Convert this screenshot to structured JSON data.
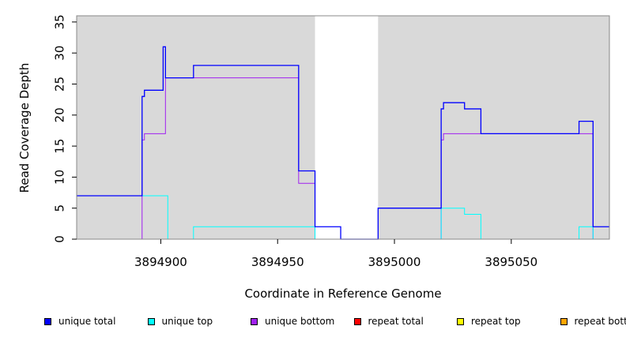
{
  "chart_data": {
    "type": "line",
    "title": "",
    "xlabel": "Coordinate in Reference Genome",
    "ylabel": "Read Coverage Depth",
    "xlim": [
      3894864,
      3895092
    ],
    "ylim": [
      0,
      36
    ],
    "x_ticks": [
      3894900,
      3894950,
      3895000,
      3895050
    ],
    "x_tick_labels": [
      "3894900",
      "3894950",
      "3895000",
      "3895050"
    ],
    "y_ticks": [
      0,
      5,
      10,
      15,
      20,
      25,
      30,
      35
    ],
    "y_tick_labels": [
      "0",
      "5",
      "10",
      "15",
      "20",
      "25",
      "30",
      "35"
    ],
    "shaded_regions": [
      [
        3894864,
        3894966
      ],
      [
        3894993,
        3895092
      ]
    ],
    "shade_color": "#d9d9d9",
    "legend_position": "bottom",
    "series": [
      {
        "name": "unique total",
        "color": "#0000ff",
        "step_x": [
          3894864,
          3894892,
          3894893,
          3894894,
          3894901,
          3894902,
          3894903,
          3894914,
          3894959,
          3894966,
          3894977,
          3894993,
          3895020,
          3895021,
          3895030,
          3895037,
          3895079,
          3895085,
          3895092
        ],
        "step_y": [
          7,
          23,
          24,
          24,
          31,
          26,
          26,
          28,
          11,
          2,
          0,
          5,
          21,
          22,
          21,
          17,
          19,
          2
        ]
      },
      {
        "name": "unique top",
        "color": "#00ffff",
        "step_x": [
          3894864,
          3894903,
          3894914,
          3894966,
          3895020,
          3895030,
          3895037,
          3895079,
          3895085,
          3895092
        ],
        "step_y": [
          7,
          0,
          2,
          0,
          5,
          4,
          0,
          2,
          0
        ]
      },
      {
        "name": "unique bottom",
        "color": "#a020f0",
        "step_x": [
          3894864,
          3894892,
          3894893,
          3894894,
          3894902,
          3894959,
          3894966,
          3895020,
          3895021,
          3895085,
          3895092
        ],
        "step_y": [
          0,
          16,
          17,
          17,
          26,
          9,
          0,
          16,
          17,
          0
        ]
      },
      {
        "name": "repeat total",
        "color": "#ff0000",
        "step_x": [
          3894864,
          3895092
        ],
        "step_y": [
          0
        ]
      },
      {
        "name": "repeat top",
        "color": "#ffff00",
        "step_x": [
          3894864,
          3895092
        ],
        "step_y": [
          0
        ]
      },
      {
        "name": "repeat bottom",
        "color": "#ffa500",
        "step_x": [
          3894864,
          3895092
        ],
        "step_y": [
          0
        ]
      }
    ]
  }
}
